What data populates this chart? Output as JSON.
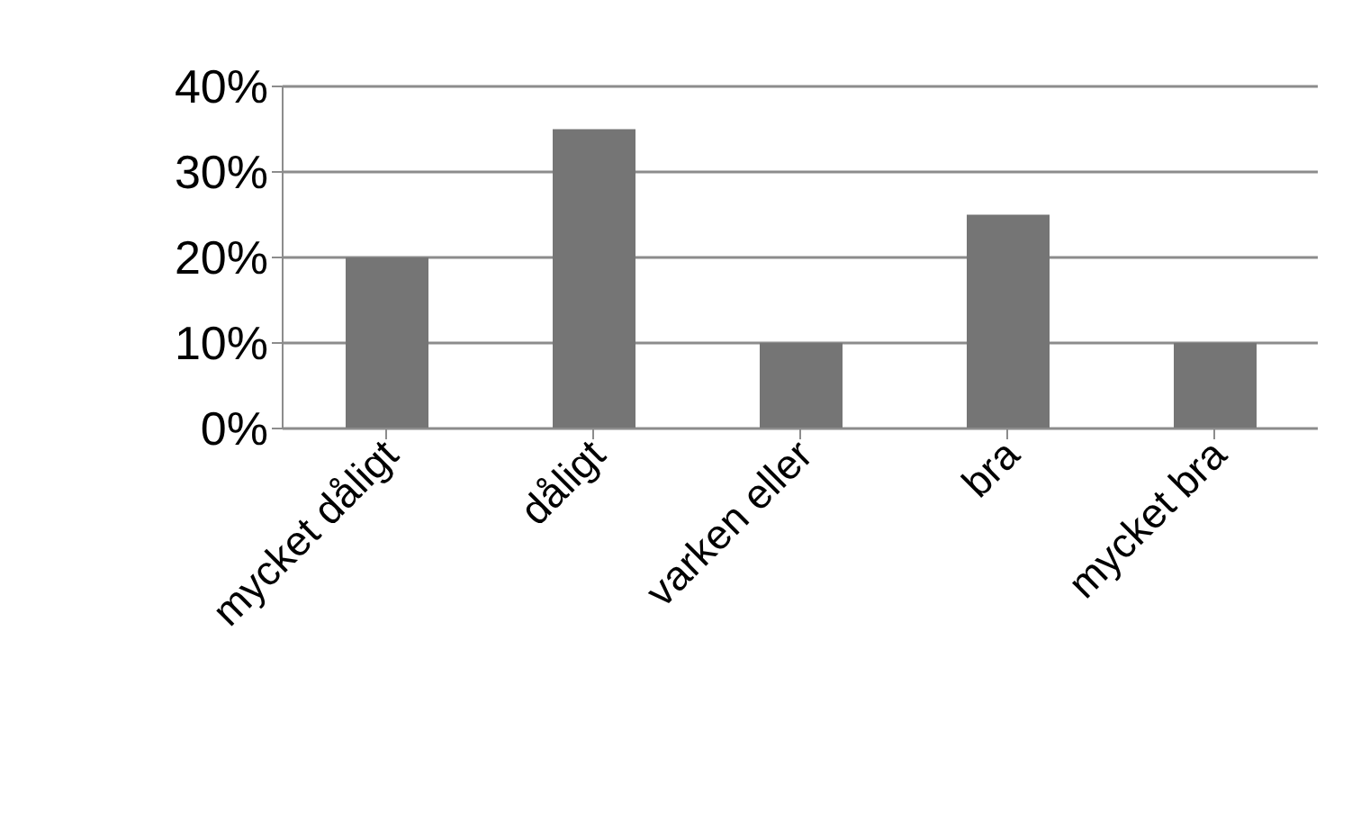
{
  "chart_data": {
    "type": "bar",
    "categories": [
      "mycket dåligt",
      "dåligt",
      "varken eller",
      "bra",
      "mycket bra"
    ],
    "values": [
      20,
      35,
      10,
      25,
      10
    ],
    "color": "#757575",
    "ylim": [
      0,
      40
    ],
    "yticks": [
      {
        "value": 0,
        "label": "0%"
      },
      {
        "value": 10,
        "label": "10%"
      },
      {
        "value": 20,
        "label": "20%"
      },
      {
        "value": 30,
        "label": "30%"
      },
      {
        "value": 40,
        "label": "40%"
      }
    ],
    "grid": "y"
  }
}
